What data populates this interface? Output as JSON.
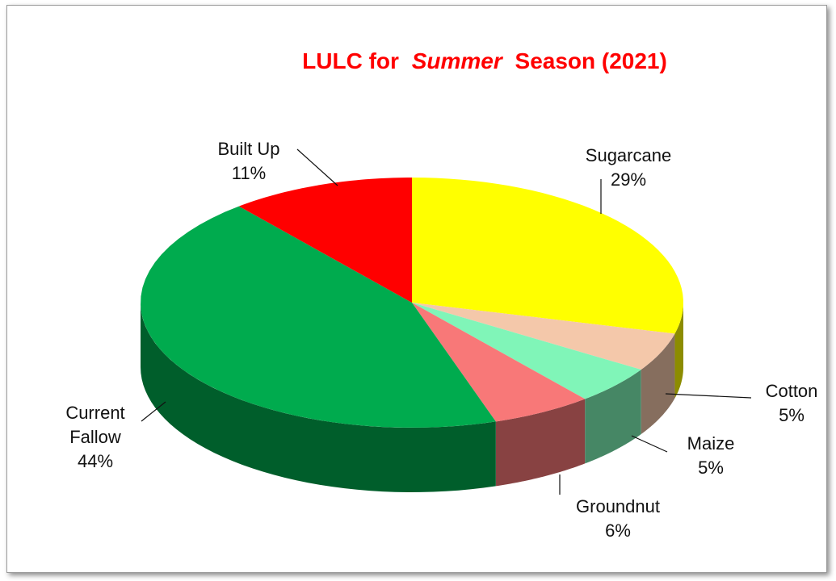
{
  "chart_data": {
    "type": "pie",
    "style": "3d",
    "title": [
      "LULC for",
      "Summer",
      "Season (2021)"
    ],
    "categories": [
      "Sugarcane",
      "Cotton",
      "Maize",
      "Groundnut",
      "Current Fallow",
      "Built Up"
    ],
    "values": [
      29,
      5,
      5,
      6,
      44,
      11
    ],
    "value_labels": [
      "29%",
      "5%",
      "5%",
      "6%",
      "44%",
      "11%"
    ],
    "colors": [
      "#ffff00",
      "#f4c8aa",
      "#80f5b8",
      "#f87878",
      "#00ab4e",
      "#ff0000"
    ]
  }
}
